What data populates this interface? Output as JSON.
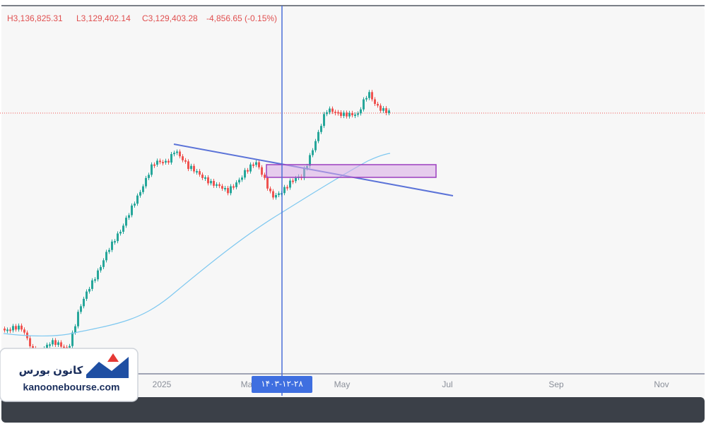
{
  "header": {
    "high": "H3,136,825.31",
    "low": "L3,129,402.14",
    "close": "C3,129,403.28",
    "change": "-4,856.65 (-0.15%)"
  },
  "x_axis": {
    "labels": [
      "2025",
      "Ma",
      "May",
      "Jul",
      "Sep",
      "Nov"
    ]
  },
  "crosshair": {
    "label": "۱۴۰۳-۱۲-۲۸"
  },
  "logo": {
    "name": "کانون بورس",
    "site": "kanoonebourse.com"
  }
}
